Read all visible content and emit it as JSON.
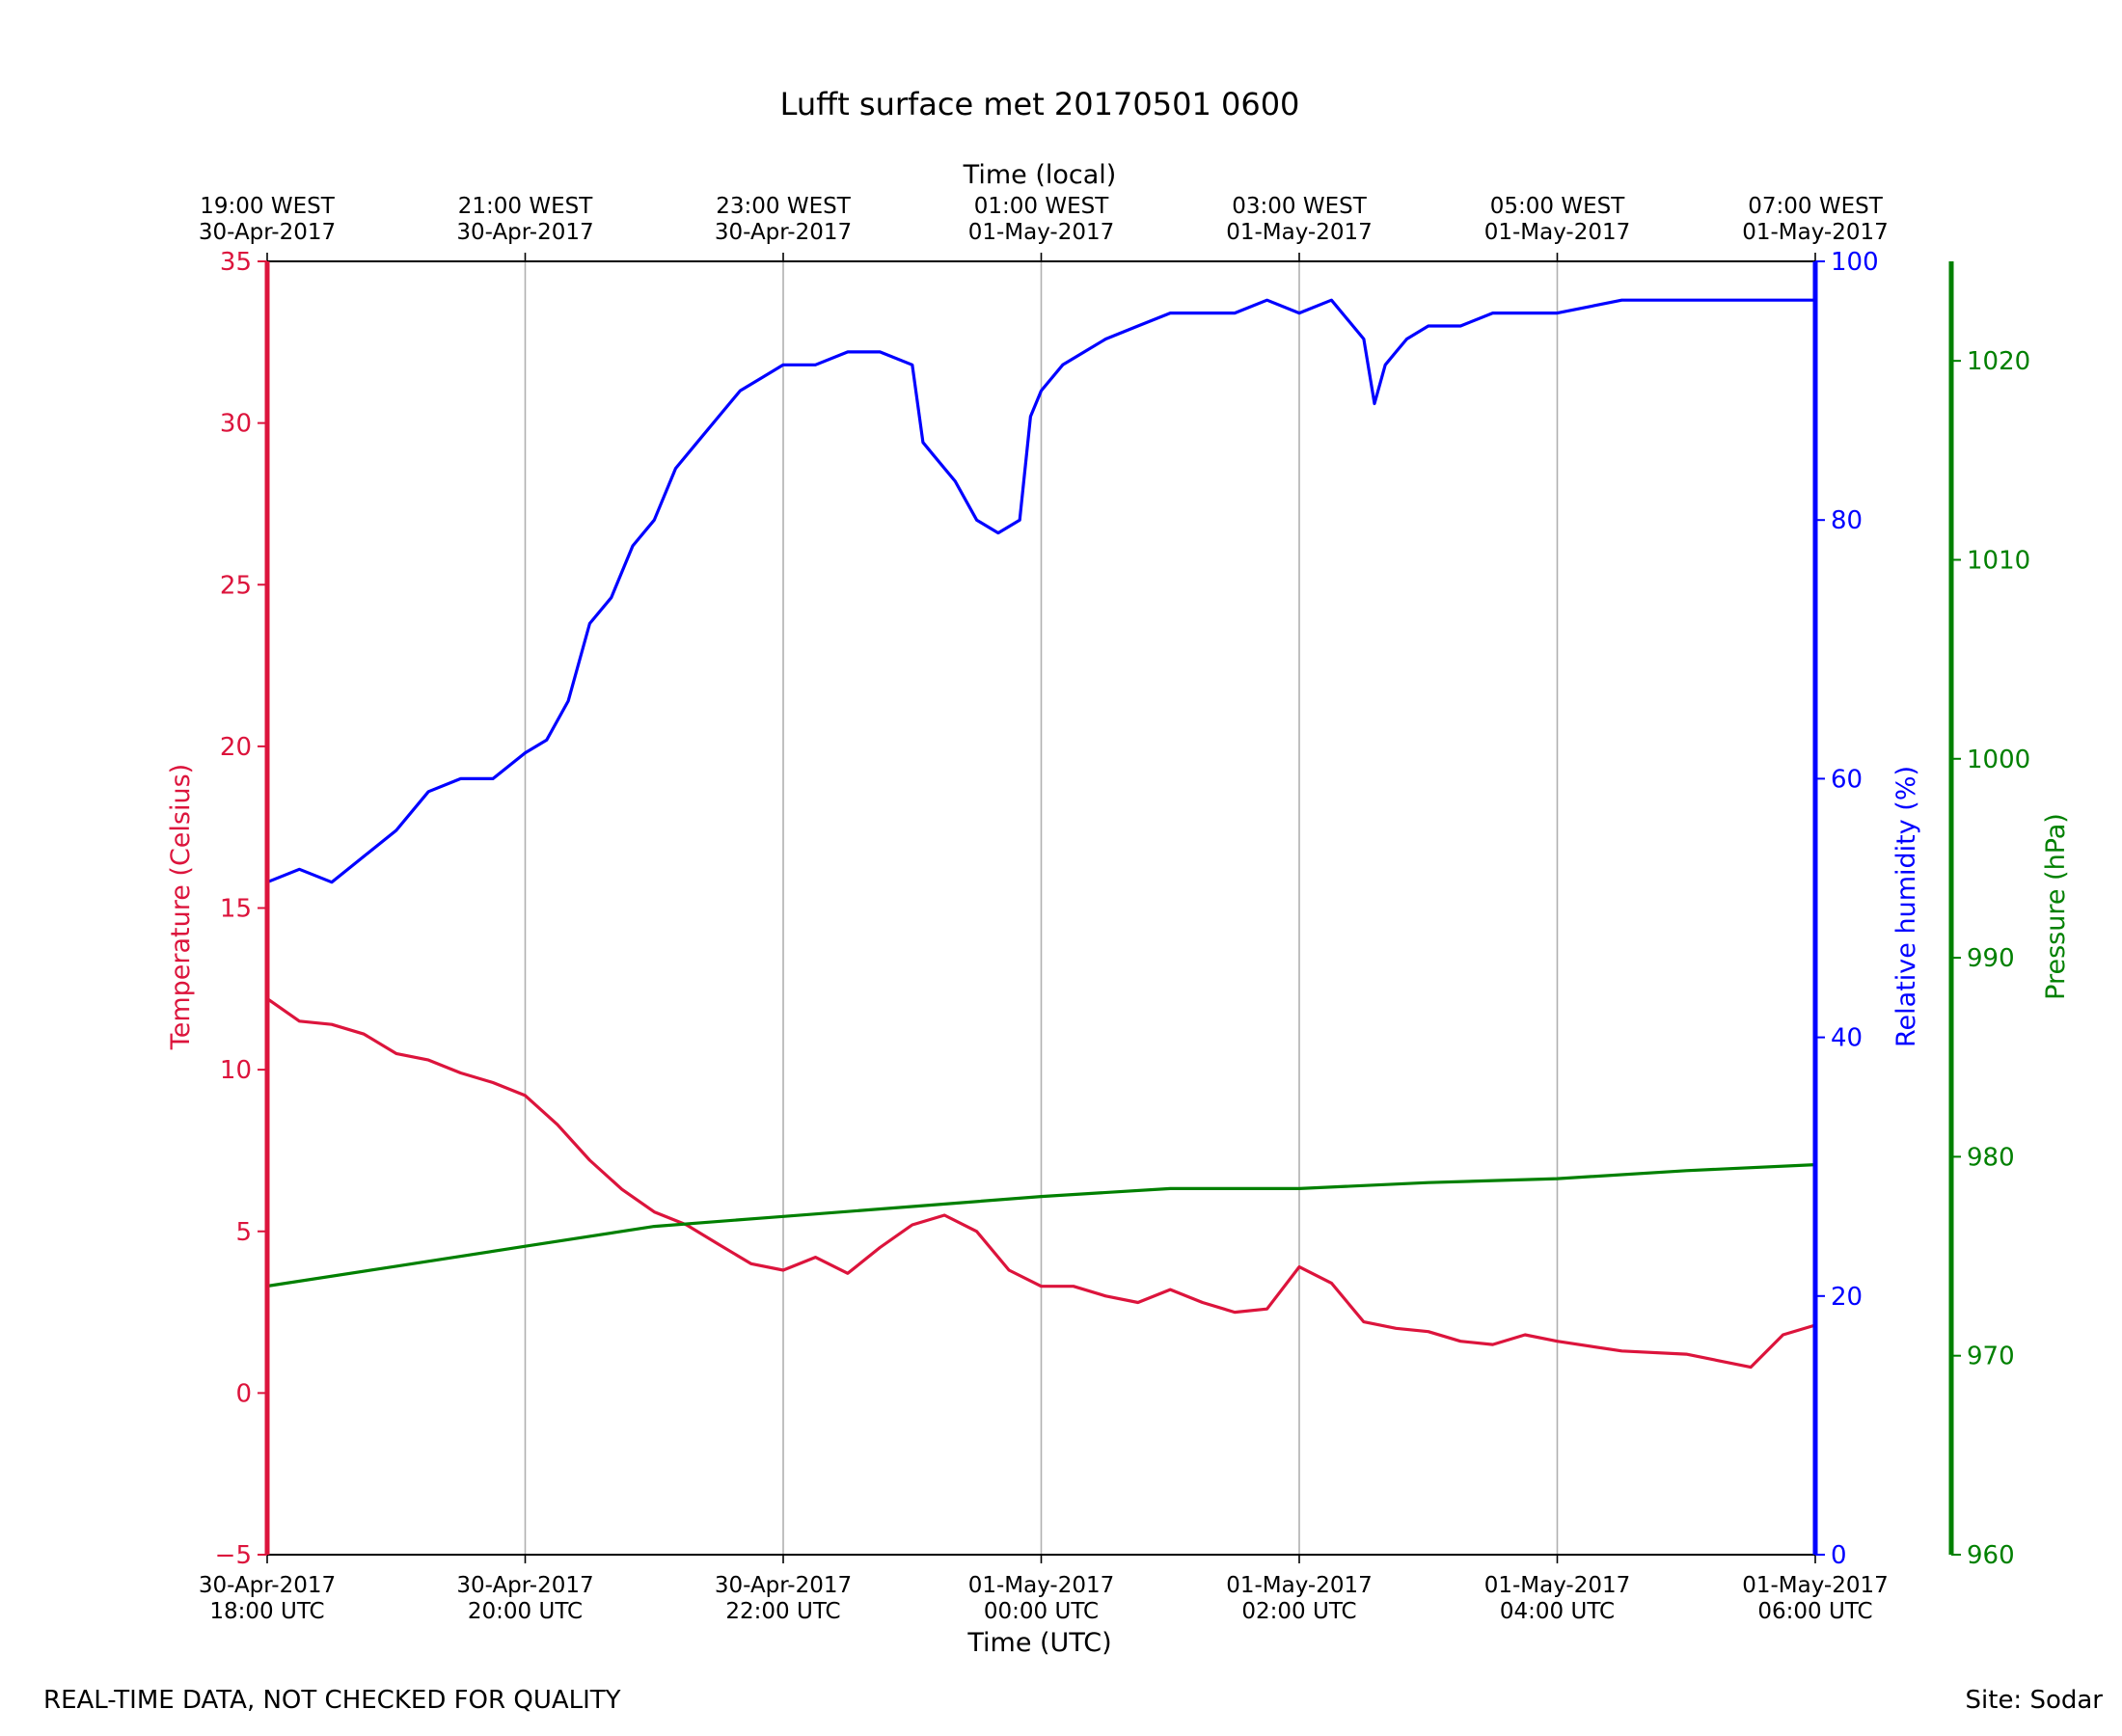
{
  "footer": {
    "quality_note": "REAL-TIME DATA, NOT CHECKED FOR QUALITY",
    "site": "Site: Sodar"
  },
  "chart_data": {
    "type": "line",
    "title": "Lufft surface met 20170501 0600",
    "xlabel": "Time (UTC)",
    "xlabel_top": "Time (local)",
    "x_ticks": [
      {
        "line1": "30-Apr-2017",
        "line2": "18:00 UTC",
        "top1": "19:00 WEST",
        "top2": "30-Apr-2017"
      },
      {
        "line1": "30-Apr-2017",
        "line2": "20:00 UTC",
        "top1": "21:00 WEST",
        "top2": "30-Apr-2017"
      },
      {
        "line1": "30-Apr-2017",
        "line2": "22:00 UTC",
        "top1": "23:00 WEST",
        "top2": "30-Apr-2017"
      },
      {
        "line1": "01-May-2017",
        "line2": "00:00 UTC",
        "top1": "01:00 WEST",
        "top2": "01-May-2017"
      },
      {
        "line1": "01-May-2017",
        "line2": "02:00 UTC",
        "top1": "03:00 WEST",
        "top2": "01-May-2017"
      },
      {
        "line1": "01-May-2017",
        "line2": "04:00 UTC",
        "top1": "05:00 WEST",
        "top2": "01-May-2017"
      },
      {
        "line1": "01-May-2017",
        "line2": "06:00 UTC",
        "top1": "07:00 WEST",
        "top2": "01-May-2017"
      }
    ],
    "x_range_utc": [
      "2017-04-30 18:00",
      "2017-05-01 06:00"
    ],
    "grid": "vertical",
    "axes": {
      "temperature": {
        "label": "Temperature (Celsius)",
        "range": [
          -5,
          35
        ],
        "ticks": [
          -5,
          0,
          5,
          10,
          15,
          20,
          25,
          30,
          35
        ],
        "color": "#dc143c",
        "position": "left"
      },
      "humidity": {
        "label": "Relative humidity (%)",
        "range": [
          0,
          100
        ],
        "ticks": [
          0,
          20,
          40,
          60,
          80,
          100
        ],
        "color": "#0000ff",
        "position": "right"
      },
      "pressure": {
        "label": "Pressure (hPa)",
        "range": [
          960,
          1025
        ],
        "ticks": [
          960,
          970,
          980,
          990,
          1000,
          1010,
          1020
        ],
        "color": "#008000",
        "position": "far-right"
      }
    },
    "series": [
      {
        "axis": "humidity",
        "color": "#0000ff",
        "time": [
          "2017-04-30 18:00",
          "2017-04-30 18:15",
          "2017-04-30 18:30",
          "2017-04-30 18:45",
          "2017-04-30 19:00",
          "2017-04-30 19:15",
          "2017-04-30 19:30",
          "2017-04-30 19:45",
          "2017-04-30 20:00",
          "2017-04-30 20:10",
          "2017-04-30 20:20",
          "2017-04-30 20:30",
          "2017-04-30 20:40",
          "2017-04-30 20:50",
          "2017-04-30 21:00",
          "2017-04-30 21:10",
          "2017-04-30 21:20",
          "2017-04-30 21:30",
          "2017-04-30 21:40",
          "2017-04-30 21:50",
          "2017-04-30 22:00",
          "2017-04-30 22:15",
          "2017-04-30 22:30",
          "2017-04-30 22:45",
          "2017-04-30 23:00",
          "2017-04-30 23:05",
          "2017-04-30 23:10",
          "2017-04-30 23:20",
          "2017-04-30 23:30",
          "2017-04-30 23:40",
          "2017-04-30 23:50",
          "2017-04-30 23:55",
          "2017-05-01 00:00",
          "2017-05-01 00:10",
          "2017-05-01 00:20",
          "2017-05-01 00:30",
          "2017-05-01 00:45",
          "2017-05-01 01:00",
          "2017-05-01 01:15",
          "2017-05-01 01:30",
          "2017-05-01 01:45",
          "2017-05-01 02:00",
          "2017-05-01 02:15",
          "2017-05-01 02:30",
          "2017-05-01 02:35",
          "2017-05-01 02:40",
          "2017-05-01 02:45",
          "2017-05-01 02:50",
          "2017-05-01 03:00",
          "2017-05-01 03:15",
          "2017-05-01 03:30",
          "2017-05-01 03:45",
          "2017-05-01 04:00",
          "2017-05-01 04:30",
          "2017-05-01 05:00",
          "2017-05-01 05:30",
          "2017-05-01 05:50",
          "2017-05-01 06:00"
        ],
        "values": [
          52,
          53,
          52,
          54,
          56,
          59,
          60,
          60,
          62,
          63,
          66,
          72,
          74,
          78,
          80,
          84,
          86,
          88,
          90,
          91,
          92,
          92,
          93,
          93,
          92,
          86,
          85,
          83,
          80,
          79,
          80,
          88,
          90,
          92,
          93,
          94,
          95,
          96,
          96,
          96,
          97,
          96,
          97,
          94,
          89,
          92,
          93,
          94,
          95,
          95,
          96,
          96,
          96,
          97,
          97,
          97,
          97,
          97
        ]
      },
      {
        "axis": "temperature",
        "color": "#dc143c",
        "time": [
          "2017-04-30 18:00",
          "2017-04-30 18:15",
          "2017-04-30 18:30",
          "2017-04-30 18:45",
          "2017-04-30 19:00",
          "2017-04-30 19:15",
          "2017-04-30 19:30",
          "2017-04-30 19:45",
          "2017-04-30 20:00",
          "2017-04-30 20:15",
          "2017-04-30 20:30",
          "2017-04-30 20:45",
          "2017-04-30 21:00",
          "2017-04-30 21:15",
          "2017-04-30 21:30",
          "2017-04-30 21:45",
          "2017-04-30 22:00",
          "2017-04-30 22:15",
          "2017-04-30 22:30",
          "2017-04-30 22:45",
          "2017-04-30 23:00",
          "2017-04-30 23:15",
          "2017-04-30 23:30",
          "2017-04-30 23:45",
          "2017-05-01 00:00",
          "2017-05-01 00:15",
          "2017-05-01 00:30",
          "2017-05-01 00:45",
          "2017-05-01 01:00",
          "2017-05-01 01:15",
          "2017-05-01 01:30",
          "2017-05-01 01:45",
          "2017-05-01 02:00",
          "2017-05-01 02:15",
          "2017-05-01 02:30",
          "2017-05-01 02:45",
          "2017-05-01 03:00",
          "2017-05-01 03:15",
          "2017-05-01 03:30",
          "2017-05-01 03:45",
          "2017-05-01 04:00",
          "2017-05-01 04:30",
          "2017-05-01 05:00",
          "2017-05-01 05:30",
          "2017-05-01 05:45",
          "2017-05-01 06:00"
        ],
        "values": [
          12.2,
          11.5,
          11.4,
          11.1,
          10.5,
          10.3,
          9.9,
          9.6,
          9.2,
          8.3,
          7.2,
          6.3,
          5.6,
          5.2,
          4.6,
          4.0,
          3.8,
          4.2,
          3.7,
          4.5,
          5.2,
          5.5,
          5.0,
          3.8,
          3.3,
          3.3,
          3.0,
          2.8,
          3.2,
          2.8,
          2.5,
          2.6,
          3.9,
          3.4,
          2.2,
          2.0,
          1.9,
          1.6,
          1.5,
          1.8,
          1.6,
          1.3,
          1.2,
          0.8,
          1.8,
          2.1
        ]
      },
      {
        "axis": "pressure",
        "color": "#008000",
        "time": [
          "2017-04-30 18:00",
          "2017-04-30 19:00",
          "2017-04-30 20:00",
          "2017-04-30 21:00",
          "2017-04-30 22:00",
          "2017-04-30 23:00",
          "2017-05-01 00:00",
          "2017-05-01 01:00",
          "2017-05-01 02:00",
          "2017-05-01 03:00",
          "2017-05-01 04:00",
          "2017-05-01 05:00",
          "2017-05-01 06:00"
        ],
        "values": [
          973.5,
          974.5,
          975.5,
          976.5,
          977.0,
          977.5,
          978.0,
          978.4,
          978.4,
          978.7,
          978.9,
          979.3,
          979.6
        ]
      }
    ]
  }
}
